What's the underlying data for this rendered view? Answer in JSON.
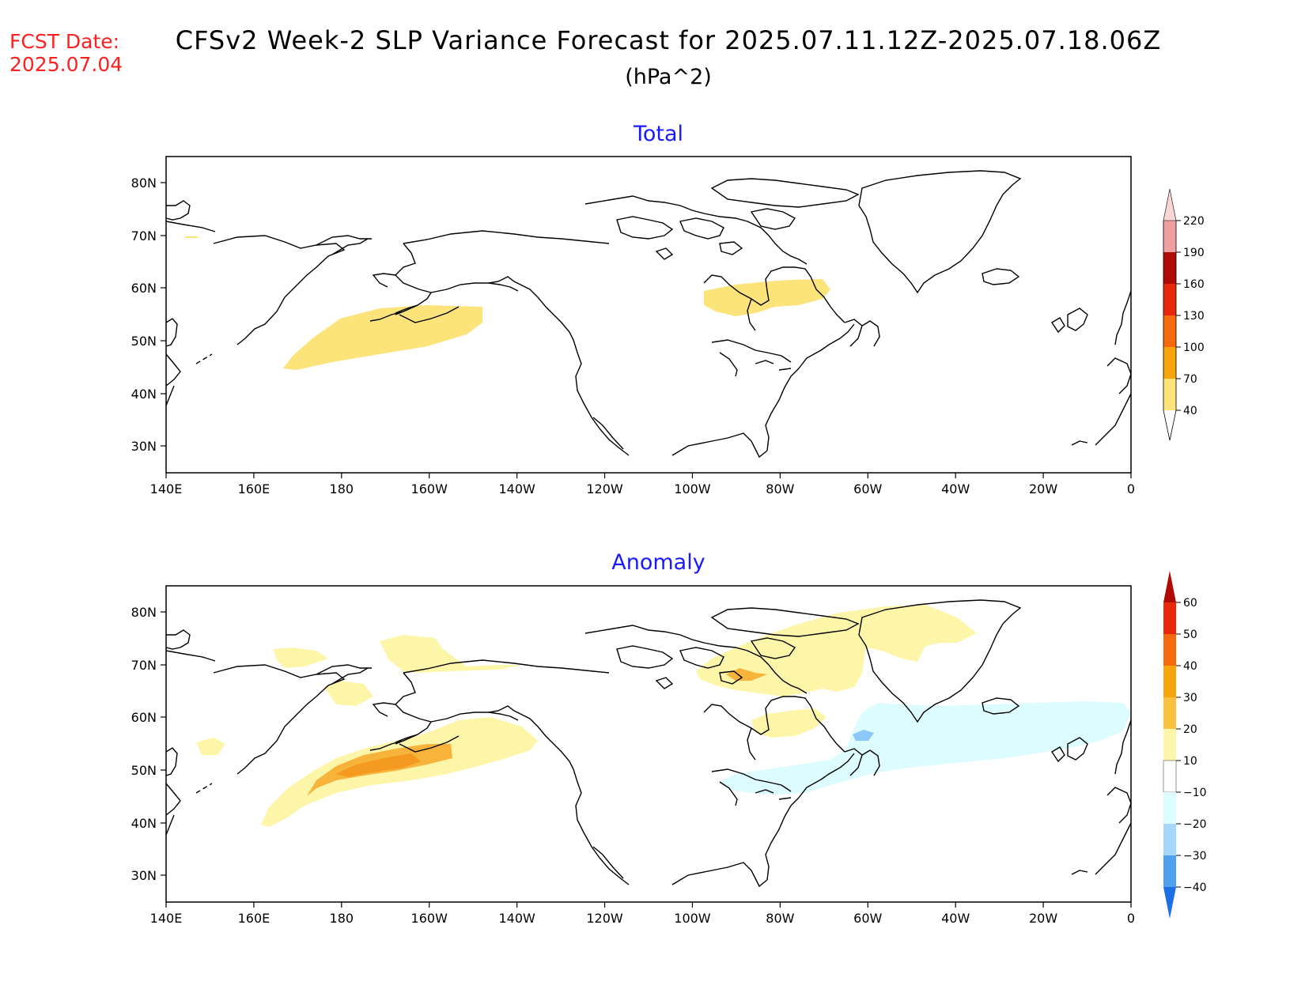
{
  "header": {
    "fcst_label": "FCST Date:",
    "fcst_date": "2025.07.04",
    "title": "CFSv2 Week-2 SLP Variance Forecast for 2025.07.11.12Z-2025.07.18.06Z",
    "units": "(hPa^2)"
  },
  "panels": [
    {
      "title": "Total",
      "lon_labels": [
        "140E",
        "160E",
        "180",
        "160W",
        "140W",
        "120W",
        "100W",
        "80W",
        "60W",
        "40W",
        "20W",
        "0"
      ],
      "lat_labels": [
        "80N",
        "70N",
        "60N",
        "50N",
        "40N",
        "30N"
      ],
      "colorbar": {
        "levels": [
          "40",
          "70",
          "100",
          "130",
          "160",
          "190",
          "220"
        ],
        "colors": [
          "#fce37a",
          "#f7a50d",
          "#f56a0c",
          "#e8280a",
          "#b00a05",
          "#f0a0a0",
          "#f9d6d6"
        ]
      }
    },
    {
      "title": "Anomaly",
      "lon_labels": [
        "140E",
        "160E",
        "180",
        "160W",
        "140W",
        "120W",
        "100W",
        "80W",
        "60W",
        "40W",
        "20W",
        "0"
      ],
      "lat_labels": [
        "80N",
        "70N",
        "60N",
        "50N",
        "40N",
        "30N"
      ],
      "colorbar": {
        "levels": [
          "60",
          "50",
          "40",
          "30",
          "20",
          "10",
          "−10",
          "−20",
          "−30",
          "−40"
        ],
        "colors": [
          "#b00a05",
          "#e8280a",
          "#f56a0c",
          "#f7a50d",
          "#fbc040",
          "#fdf6a8",
          "#ffffff",
          "#dcfcff",
          "#a6d8fb",
          "#50a0f0",
          "#1e6ee6"
        ]
      }
    }
  ],
  "legend_colors": {
    "light_yellow": "#fdf6a8",
    "yellow": "#fce37a",
    "orange": "#f7b33a",
    "dark_orange": "#f59a20",
    "light_cyan": "#dcfcff",
    "light_blue": "#8cc8f8"
  }
}
